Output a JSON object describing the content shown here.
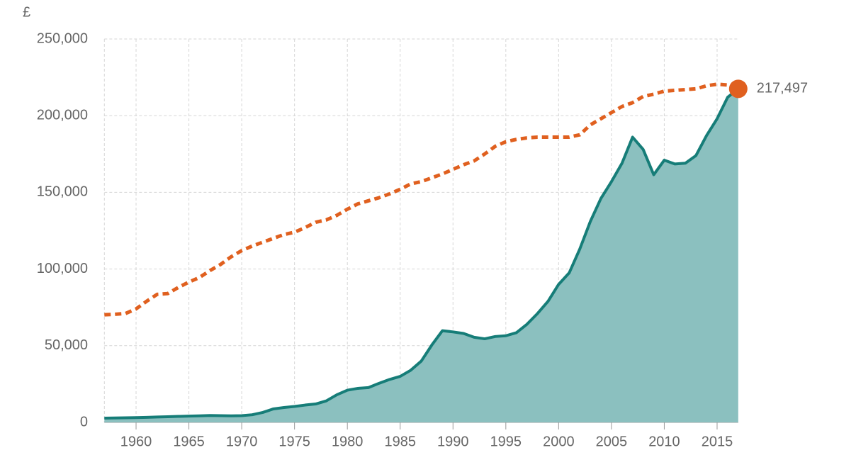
{
  "chart_data": {
    "type": "area-line",
    "unit_label": "£",
    "x": [
      1957,
      1958,
      1959,
      1960,
      1961,
      1962,
      1963,
      1964,
      1965,
      1966,
      1967,
      1968,
      1969,
      1970,
      1971,
      1972,
      1973,
      1974,
      1975,
      1976,
      1977,
      1978,
      1979,
      1980,
      1981,
      1982,
      1983,
      1984,
      1985,
      1986,
      1987,
      1988,
      1989,
      1990,
      1991,
      1992,
      1993,
      1994,
      1995,
      1996,
      1997,
      1998,
      1999,
      2000,
      2001,
      2002,
      2003,
      2004,
      2005,
      2006,
      2007,
      2008,
      2009,
      2010,
      2011,
      2012,
      2013,
      2014,
      2015,
      2016,
      2017
    ],
    "series": [
      {
        "color": "#167d78",
        "fill": "#8bc0bf",
        "style": "area",
        "values": [
          2800,
          2900,
          3000,
          3100,
          3300,
          3500,
          3700,
          3900,
          4100,
          4300,
          4500,
          4400,
          4300,
          4400,
          5000,
          6500,
          8800,
          9700,
          10400,
          11300,
          12000,
          14000,
          18000,
          21000,
          22200,
          22700,
          25500,
          28000,
          30000,
          34000,
          40000,
          50500,
          59800,
          59000,
          58000,
          55500,
          54500,
          56000,
          56500,
          58500,
          64000,
          71000,
          79000,
          90000,
          97500,
          113000,
          131000,
          146000,
          157000,
          169000,
          186000,
          178000,
          161500,
          171000,
          168500,
          169000,
          174000,
          187000,
          198000,
          212000,
          217497
        ]
      },
      {
        "color": "#e0601f",
        "style": "dashed",
        "values": [
          70200,
          70500,
          71000,
          74000,
          79000,
          83500,
          84000,
          88000,
          91500,
          94500,
          99000,
          103000,
          108000,
          112000,
          115000,
          117500,
          120000,
          122500,
          124000,
          127000,
          130500,
          132000,
          135000,
          139000,
          142500,
          144500,
          146500,
          149000,
          152000,
          155500,
          157000,
          159500,
          162000,
          165000,
          168000,
          170500,
          175000,
          180000,
          183000,
          184500,
          185500,
          186000,
          186000,
          186000,
          186000,
          187500,
          194000,
          198000,
          202000,
          206000,
          208500,
          212500,
          214000,
          216000,
          216500,
          217000,
          217500,
          219500,
          220500,
          220000,
          217497
        ],
        "end_label": "217,497"
      }
    ],
    "xlim": [
      1957,
      2017
    ],
    "xticks": [
      1960,
      1965,
      1970,
      1975,
      1980,
      1985,
      1990,
      1995,
      2000,
      2005,
      2010,
      2015
    ],
    "ylim": [
      0,
      250000
    ],
    "yticks": [
      0,
      {
        "value": 50000,
        "label": "50,000"
      },
      {
        "value": 100000,
        "label": "100,000"
      },
      {
        "value": 150000,
        "label": "150,000"
      },
      {
        "value": 200000,
        "label": "200,000"
      },
      {
        "value": 250000,
        "label": "250,000"
      }
    ],
    "grid": true
  }
}
